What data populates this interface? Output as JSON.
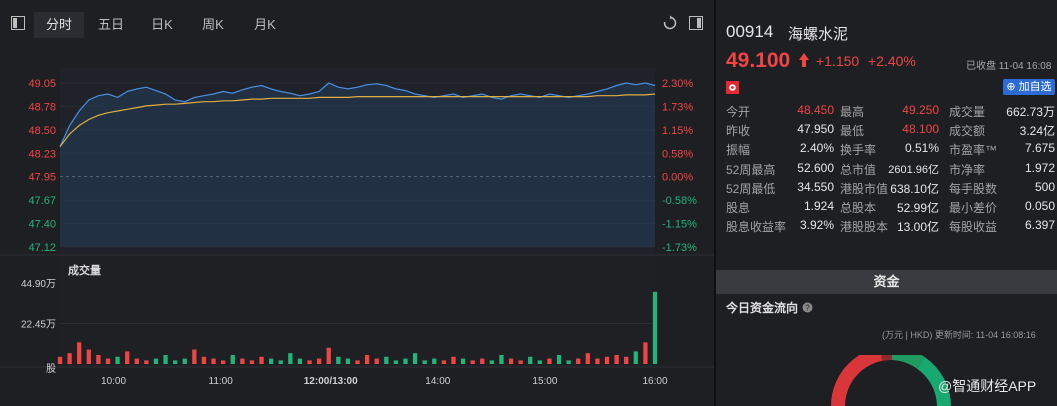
{
  "tabs": [
    {
      "label": "分时"
    },
    {
      "label": "五日"
    },
    {
      "label": "日K"
    },
    {
      "label": "周K"
    },
    {
      "label": "月K"
    }
  ],
  "stock": {
    "code": "00914",
    "name": "海螺水泥",
    "price": "49.100",
    "change": "+1.150",
    "change_pct": "+2.40%",
    "status": "已收盘 11-04 16:08",
    "add_button": "加自选"
  },
  "quote_rows": [
    [
      {
        "k": "今开",
        "v": "48.450",
        "c": "red"
      },
      {
        "k": "最高",
        "v": "49.250",
        "c": "red"
      },
      {
        "k": "成交量",
        "v": "662.73万",
        "c": "white"
      }
    ],
    [
      {
        "k": "昨收",
        "v": "47.950",
        "c": "white"
      },
      {
        "k": "最低",
        "v": "48.100",
        "c": "red"
      },
      {
        "k": "成交额",
        "v": "3.24亿",
        "c": "white"
      }
    ],
    [
      {
        "k": "振幅",
        "v": "2.40%",
        "c": "white"
      },
      {
        "k": "换手率",
        "v": "0.51%",
        "c": "white"
      },
      {
        "k": "市盈率™",
        "v": "7.675",
        "c": "white"
      }
    ],
    [
      {
        "k": "52周最高",
        "v": "52.600",
        "c": "white"
      },
      {
        "k": "总市值",
        "v": "2601.96亿",
        "c": "white"
      },
      {
        "k": "市净率",
        "v": "1.972",
        "c": "white"
      }
    ],
    [
      {
        "k": "52周最低",
        "v": "34.550",
        "c": "white"
      },
      {
        "k": "港股市值",
        "v": "638.10亿",
        "c": "white"
      },
      {
        "k": "每手股数",
        "v": "500",
        "c": "white"
      }
    ],
    [
      {
        "k": "股息",
        "v": "1.924",
        "c": "white"
      },
      {
        "k": "总股本",
        "v": "52.99亿",
        "c": "white"
      },
      {
        "k": "最小差价",
        "v": "0.050",
        "c": "white"
      }
    ],
    [
      {
        "k": "股息收益率",
        "v": "3.92%",
        "c": "white"
      },
      {
        "k": "港股股本",
        "v": "13.00亿",
        "c": "white"
      },
      {
        "k": "每股收益",
        "v": "6.397",
        "c": "white"
      }
    ]
  ],
  "capital": {
    "section_title": "资金",
    "flow_title": "今日资金流向",
    "unit_note": "(万元 | HKD) 更新时间: 11-04 16:08:16"
  },
  "watermark": "@智通财经APP",
  "volume_title": "成交量",
  "colors": {
    "up": "#f14545",
    "down": "#21b57a",
    "price_line": "#4a90e2",
    "avg_line": "#e0b043"
  },
  "chart_data": {
    "type": "line",
    "price_axis": [
      "49.05",
      "48.78",
      "48.50",
      "48.23",
      "47.95",
      "47.67",
      "47.40",
      "47.12"
    ],
    "pct_axis": [
      "2.30%",
      "1.73%",
      "1.15%",
      "0.58%",
      "0.00%",
      "-0.58%",
      "-1.15%",
      "-1.73%"
    ],
    "volume_axis": [
      "44.90万",
      "22.45万",
      "股"
    ],
    "time_labels": [
      "10:00",
      "11:00",
      "12:00/13:00",
      "14:00",
      "15:00",
      "16:00"
    ],
    "ylim": [
      47.12,
      49.05
    ],
    "prev_close": 47.95,
    "price": [
      48.3,
      48.55,
      48.72,
      48.85,
      48.9,
      48.92,
      48.88,
      48.95,
      48.98,
      49.0,
      48.96,
      48.92,
      48.85,
      48.83,
      48.88,
      48.9,
      48.92,
      48.95,
      48.93,
      48.97,
      49.0,
      49.02,
      48.98,
      48.95,
      48.93,
      48.9,
      48.92,
      48.95,
      49.05,
      49.0,
      48.98,
      49.0,
      49.03,
      49.04,
      49.02,
      48.98,
      48.96,
      48.92,
      48.9,
      48.88,
      48.9,
      48.92,
      48.88,
      48.9,
      48.92,
      48.88,
      48.86,
      48.9,
      48.92,
      48.9,
      48.88,
      48.92,
      48.9,
      48.88,
      48.9,
      48.92,
      48.95,
      48.98,
      49.02,
      49.05,
      49.03,
      49.05,
      49.02
    ],
    "average": [
      48.3,
      48.45,
      48.55,
      48.62,
      48.67,
      48.7,
      48.72,
      48.74,
      48.76,
      48.78,
      48.79,
      48.8,
      48.8,
      48.81,
      48.82,
      48.83,
      48.83,
      48.84,
      48.84,
      48.85,
      48.86,
      48.86,
      48.87,
      48.87,
      48.87,
      48.87,
      48.87,
      48.88,
      48.88,
      48.88,
      48.88,
      48.89,
      48.89,
      48.89,
      48.89,
      48.89,
      48.89,
      48.89,
      48.89,
      48.89,
      48.89,
      48.89,
      48.89,
      48.89,
      48.89,
      48.89,
      48.89,
      48.89,
      48.89,
      48.89,
      48.89,
      48.89,
      48.89,
      48.89,
      48.89,
      48.89,
      48.9,
      48.9,
      48.9,
      48.91,
      48.91,
      48.91,
      48.92
    ],
    "volume_ylim": [
      0,
      44.9
    ],
    "volume": [
      4,
      6,
      12,
      8,
      5,
      3,
      4,
      7,
      3,
      2,
      3,
      5,
      2,
      3,
      8,
      4,
      3,
      2,
      5,
      3,
      2,
      4,
      3,
      2,
      6,
      3,
      2,
      3,
      9,
      4,
      3,
      2,
      5,
      3,
      4,
      2,
      3,
      6,
      2,
      3,
      2,
      4,
      3,
      2,
      3,
      2,
      5,
      3,
      2,
      4,
      2,
      3,
      5,
      2,
      3,
      6,
      3,
      4,
      5,
      4,
      7,
      12,
      40
    ]
  }
}
